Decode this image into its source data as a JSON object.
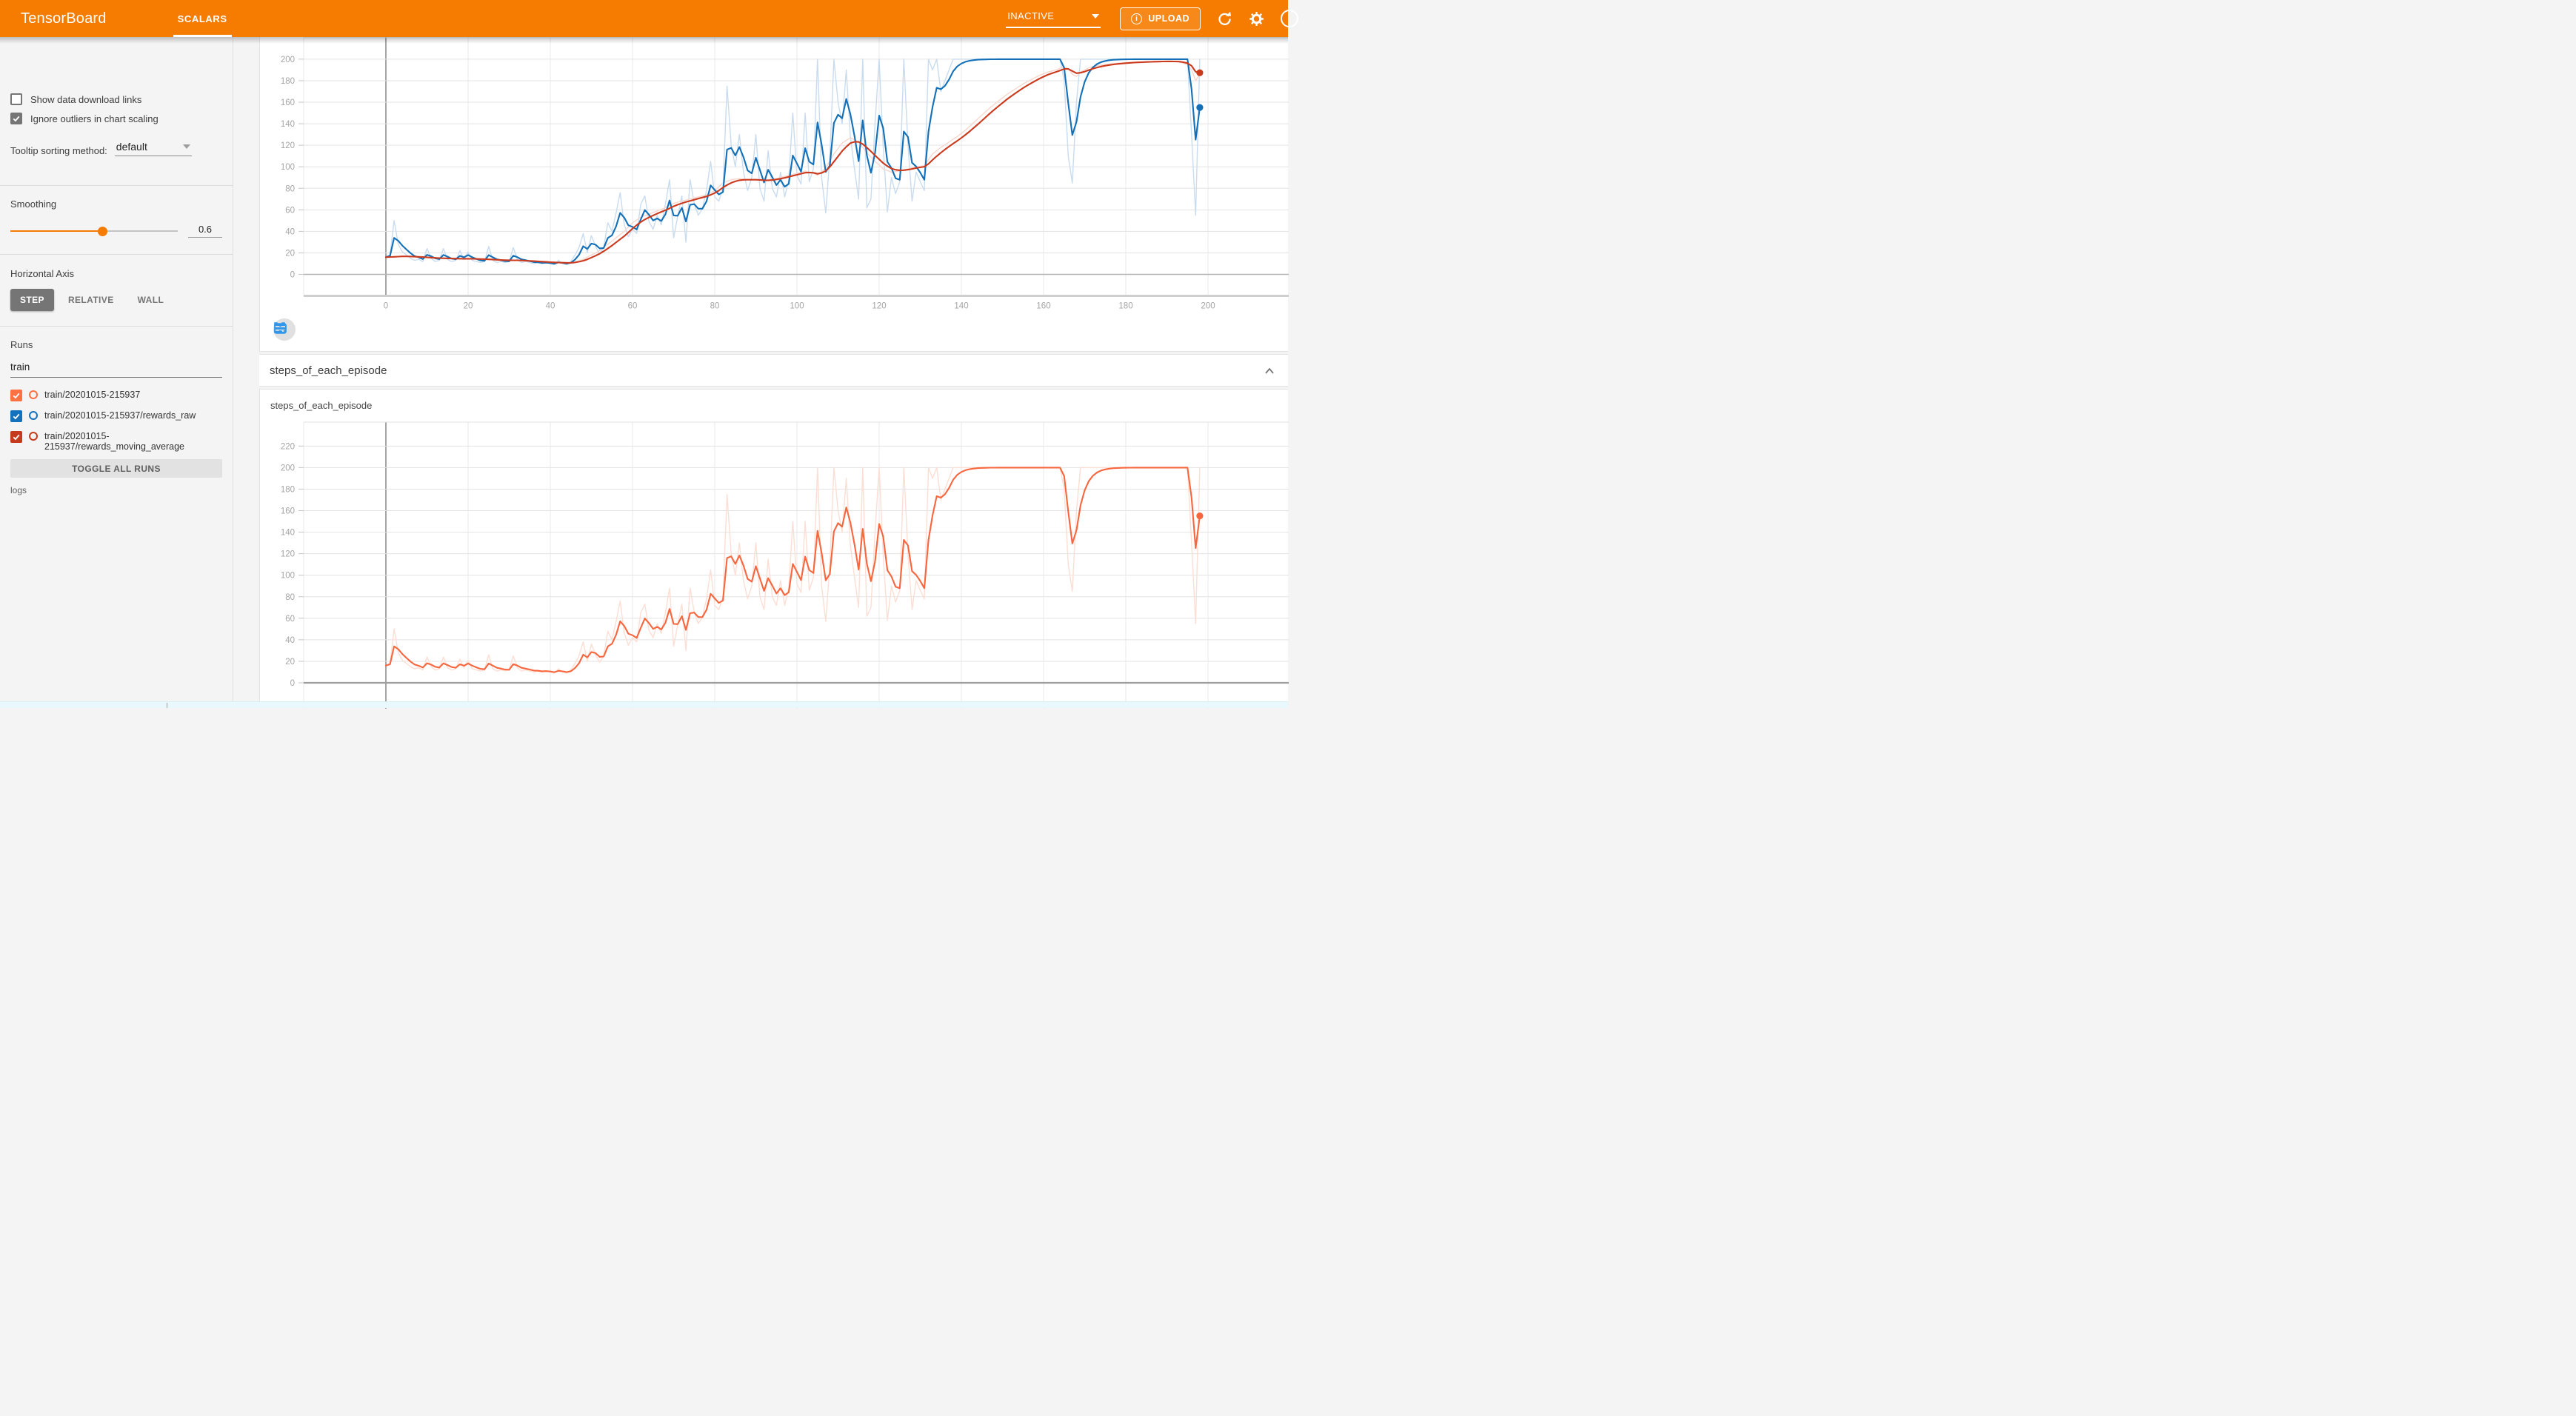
{
  "header": {
    "title": "TensorBoard",
    "active_tab": "SCALARS",
    "status_dropdown": "INACTIVE",
    "upload_button": "UPLOAD"
  },
  "sidebar": {
    "show_download_links": "Show data download links",
    "ignore_outliers": "Ignore outliers in chart scaling",
    "tooltip_sorting_label": "Tooltip sorting method:",
    "tooltip_sorting_value": "default",
    "smoothing_label": "Smoothing",
    "smoothing_value": "0.6",
    "horizontal_axis_label": "Horizontal Axis",
    "haxis_options": [
      "STEP",
      "RELATIVE",
      "WALL"
    ],
    "runs_label": "Runs",
    "runs_filter_value": "train",
    "runs": [
      {
        "label": "train/20201015-215937",
        "color": "#ff7043",
        "checked": true
      },
      {
        "label": "train/20201015-215937/rewards_raw",
        "color": "#1372bb",
        "checked": true
      },
      {
        "label": "train/20201015-215937/rewards_moving_average",
        "color": "#c53a1d",
        "checked": true
      }
    ],
    "toggle_all_runs": "TOGGLE ALL RUNS",
    "logs_label": "logs"
  },
  "section": {
    "title": "steps_of_each_episode",
    "card_title": "steps_of_each_episode"
  },
  "chart_data": {
    "type": "line",
    "horizontal_axis": "STEP",
    "smoothing_weight": 0.6,
    "x_start": 0,
    "x_step": 1,
    "x_ticks": [
      0,
      20,
      40,
      60,
      80,
      100,
      120,
      140,
      160,
      180,
      200
    ],
    "charts": [
      {
        "id": "top-scalar-chart",
        "y_ticks": [
          200,
          180,
          160,
          140,
          120,
          100,
          80,
          60,
          40,
          20,
          0
        ],
        "series": [
          {
            "name": "train/20201015-215937/rewards_raw (raw)",
            "data": "episode",
            "mode": "raw",
            "color": "#c9dcef",
            "width": 1.4
          },
          {
            "name": "train/20201015-215937/rewards_moving_average (raw)",
            "data": "mavg",
            "mode": "raw",
            "color": "#f7d7cd",
            "width": 1.4
          },
          {
            "name": "train/20201015-215937/rewards_raw (smoothed 0.6)",
            "data": "episode",
            "mode": "smoothed",
            "color": "#1370b8",
            "width": 2.1,
            "end_dot": true
          },
          {
            "name": "train/20201015-215937/rewards_moving_average (smoothed 0.6)",
            "data": "mavg",
            "mode": "smoothed",
            "color": "#cc3a1e",
            "width": 2.1,
            "end_dot": true
          }
        ]
      },
      {
        "id": "steps_of_each_episode",
        "title": "steps_of_each_episode",
        "y_ticks": [
          220,
          200,
          180,
          160,
          140,
          120,
          100,
          80,
          60,
          40,
          20,
          0
        ],
        "series": [
          {
            "name": "train/20201015-215937 steps_of_each_episode (raw)",
            "data": "episode",
            "mode": "raw",
            "color": "#fcded4",
            "width": 1.4
          },
          {
            "name": "train/20201015-215937 steps_of_each_episode (smoothed 0.6)",
            "data": "episode",
            "mode": "smoothed",
            "color": "#f8663e",
            "width": 2.1,
            "end_dot": true
          }
        ]
      }
    ],
    "series_data": {
      "episode_values": [
        16,
        18,
        50,
        28,
        21,
        18,
        15,
        13,
        14,
        12,
        24,
        15,
        12,
        13,
        24,
        14,
        12,
        13,
        22,
        14,
        21,
        13,
        12,
        11,
        12,
        26,
        13,
        11,
        12,
        11,
        12,
        25,
        14,
        11,
        12,
        11,
        10,
        11,
        10,
        11,
        10,
        9,
        13,
        10,
        9,
        12,
        18,
        25,
        38,
        20,
        36,
        26,
        19,
        25,
        48,
        40,
        57,
        76,
        46,
        35,
        42,
        38,
        65,
        73,
        49,
        42,
        55,
        46,
        65,
        88,
        34,
        54,
        73,
        30,
        88,
        66,
        55,
        61,
        78,
        105,
        72,
        68,
        80,
        175,
        120,
        100,
        130,
        95,
        78,
        90,
        130,
        80,
        68,
        115,
        80,
        72,
        95,
        72,
        88,
        150,
        92,
        84,
        150,
        86,
        98,
        200,
        90,
        57,
        110,
        200,
        160,
        140,
        190,
        128,
        98,
        70,
        200,
        62,
        70,
        140,
        200,
        118,
        58,
        90,
        75,
        86,
        200,
        120,
        68,
        95,
        86,
        78,
        200,
        190,
        200,
        170,
        180,
        190,
        200,
        200,
        200,
        200,
        200,
        200,
        200,
        200,
        200,
        200,
        200,
        200,
        200,
        200,
        200,
        200,
        200,
        200,
        200,
        200,
        200,
        200,
        200,
        200,
        200,
        200,
        200,
        180,
        110,
        85,
        160,
        200,
        200,
        200,
        200,
        200,
        200,
        200,
        200,
        200,
        200,
        200,
        200,
        200,
        200,
        200,
        200,
        200,
        200,
        200,
        200,
        200,
        200,
        200,
        200,
        200,
        200,
        200,
        130,
        55,
        200
      ],
      "moving_average_points": [
        [
          0,
          16
        ],
        [
          4,
          17
        ],
        [
          8,
          16
        ],
        [
          12,
          15
        ],
        [
          16,
          14.5
        ],
        [
          20,
          14.5
        ],
        [
          24,
          14
        ],
        [
          28,
          13
        ],
        [
          32,
          13
        ],
        [
          36,
          12
        ],
        [
          40,
          11
        ],
        [
          44,
          10.5
        ],
        [
          46,
          11.5
        ],
        [
          48,
          14
        ],
        [
          50,
          18
        ],
        [
          52,
          22
        ],
        [
          54,
          28
        ],
        [
          56,
          34
        ],
        [
          58,
          40
        ],
        [
          60,
          48
        ],
        [
          62,
          53
        ],
        [
          64,
          56
        ],
        [
          66,
          59
        ],
        [
          68,
          62
        ],
        [
          70,
          66
        ],
        [
          72,
          68
        ],
        [
          74,
          70
        ],
        [
          76,
          72
        ],
        [
          78,
          74
        ],
        [
          80,
          78
        ],
        [
          82,
          85
        ],
        [
          84,
          88
        ],
        [
          86,
          89
        ],
        [
          88,
          88
        ],
        [
          90,
          88
        ],
        [
          92,
          87
        ],
        [
          94,
          88
        ],
        [
          96,
          90
        ],
        [
          98,
          92
        ],
        [
          100,
          94
        ],
        [
          102,
          96
        ],
        [
          104,
          94
        ],
        [
          105,
          92
        ],
        [
          107,
          99
        ],
        [
          109,
          112
        ],
        [
          111,
          122
        ],
        [
          113,
          127
        ],
        [
          115,
          123
        ],
        [
          117,
          113
        ],
        [
          119,
          105
        ],
        [
          121,
          98
        ],
        [
          123,
          95
        ],
        [
          125,
          96
        ],
        [
          127,
          98
        ],
        [
          129,
          100
        ],
        [
          131,
          101
        ],
        [
          133,
          112
        ],
        [
          135,
          118
        ],
        [
          137,
          123
        ],
        [
          139,
          128
        ],
        [
          141,
          134
        ],
        [
          143,
          141
        ],
        [
          145,
          148
        ],
        [
          147,
          155
        ],
        [
          149,
          161
        ],
        [
          151,
          167
        ],
        [
          153,
          172
        ],
        [
          155,
          177
        ],
        [
          157,
          181
        ],
        [
          159,
          185
        ],
        [
          161,
          188
        ],
        [
          163,
          190
        ],
        [
          165,
          193
        ],
        [
          166,
          191
        ],
        [
          167,
          186
        ],
        [
          168,
          184
        ],
        [
          169,
          188
        ],
        [
          170,
          190
        ],
        [
          171,
          192
        ],
        [
          173,
          194
        ],
        [
          175,
          195
        ],
        [
          177,
          196
        ],
        [
          179,
          196.5
        ],
        [
          181,
          197
        ],
        [
          183,
          197.3
        ],
        [
          185,
          197.6
        ],
        [
          187,
          197.8
        ],
        [
          189,
          198
        ],
        [
          191,
          198
        ],
        [
          193,
          197.5
        ],
        [
          195,
          195
        ],
        [
          196,
          190
        ],
        [
          197,
          180
        ],
        [
          198,
          186
        ]
      ]
    }
  }
}
